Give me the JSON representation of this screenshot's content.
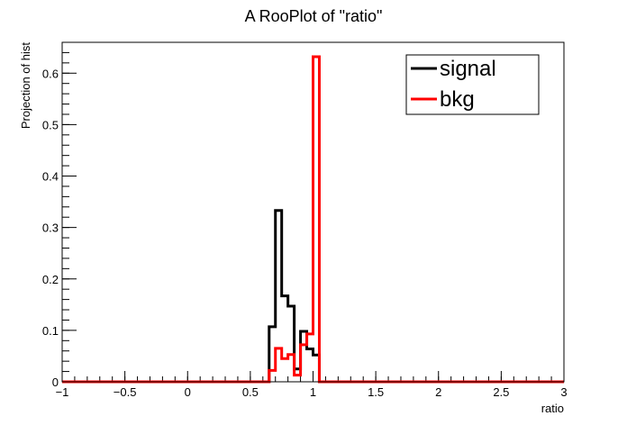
{
  "chart_data": {
    "type": "line",
    "title": "A RooPlot of \"ratio\"",
    "xlabel": "ratio",
    "ylabel": "Projection of hist",
    "xlim": [
      -1,
      3
    ],
    "ylim": [
      0,
      0.66
    ],
    "x_ticks": [
      -1,
      -0.5,
      0,
      0.5,
      1,
      1.5,
      2,
      2.5,
      3
    ],
    "x_tick_labels": [
      "−1",
      "−0.5",
      "0",
      "0.5",
      "1",
      "1.5",
      "2",
      "2.5",
      "3"
    ],
    "y_ticks": [
      0,
      0.1,
      0.2,
      0.3,
      0.4,
      0.5,
      0.6
    ],
    "y_tick_labels": [
      "0",
      "0.1",
      "0.2",
      "0.3",
      "0.4",
      "0.5",
      "0.6"
    ],
    "bin_width": 0.05,
    "grid": false,
    "legend_position": "top-right",
    "series": [
      {
        "name": "signal",
        "color": "#000000",
        "bins": [
          [
            0.65,
            0.107
          ],
          [
            0.7,
            0.333
          ],
          [
            0.75,
            0.167
          ],
          [
            0.8,
            0.147
          ],
          [
            0.85,
            0.025
          ],
          [
            0.9,
            0.098
          ],
          [
            0.95,
            0.064
          ],
          [
            1.0,
            0.052
          ],
          [
            1.05,
            0.0
          ],
          [
            1.1,
            0.0
          ]
        ]
      },
      {
        "name": "bkg",
        "color": "#ff0000",
        "bins": [
          [
            0.65,
            0.022
          ],
          [
            0.7,
            0.065
          ],
          [
            0.75,
            0.045
          ],
          [
            0.8,
            0.053
          ],
          [
            0.85,
            0.013
          ],
          [
            0.9,
            0.072
          ],
          [
            0.95,
            0.093
          ],
          [
            1.0,
            0.632
          ],
          [
            1.05,
            0.0
          ],
          [
            1.1,
            0.0
          ]
        ]
      }
    ]
  }
}
